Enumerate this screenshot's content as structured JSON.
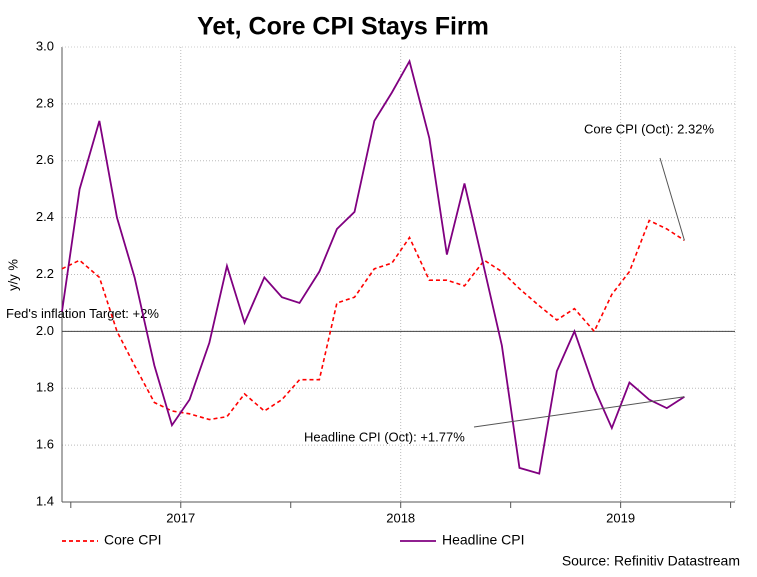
{
  "chart_data": {
    "type": "line",
    "title": "Yet, Core CPI Stays Firm",
    "y_label": "y/y %",
    "source": "Source: Refinitiv Datastream",
    "x": [
      2016.96,
      2017.04,
      2017.13,
      2017.21,
      2017.29,
      2017.38,
      2017.46,
      2017.54,
      2017.63,
      2017.71,
      2017.79,
      2017.88,
      2017.96,
      2018.04,
      2018.13,
      2018.21,
      2018.29,
      2018.38,
      2018.46,
      2018.54,
      2018.63,
      2018.71,
      2018.79,
      2018.88,
      2018.96,
      2019.04,
      2019.13,
      2019.21,
      2019.29,
      2019.38,
      2019.46,
      2019.54,
      2019.63,
      2019.71,
      2019.79
    ],
    "series": [
      {
        "name": "Core CPI",
        "color": "#ff0000",
        "dash": true,
        "values": [
          2.22,
          2.25,
          2.19,
          2.0,
          1.88,
          1.75,
          1.72,
          1.71,
          1.69,
          1.7,
          1.78,
          1.72,
          1.76,
          1.83,
          1.83,
          2.1,
          2.12,
          2.22,
          2.24,
          2.33,
          2.18,
          2.18,
          2.16,
          2.25,
          2.21,
          2.15,
          2.09,
          2.04,
          2.08,
          2.0,
          2.13,
          2.21,
          2.39,
          2.36,
          2.32
        ]
      },
      {
        "name": "Headline CPI",
        "color": "#800080",
        "dash": false,
        "values": [
          2.07,
          2.5,
          2.74,
          2.4,
          2.19,
          1.88,
          1.67,
          1.76,
          1.96,
          2.23,
          2.03,
          2.19,
          2.12,
          2.1,
          2.21,
          2.36,
          2.42,
          2.74,
          2.84,
          2.95,
          2.68,
          2.27,
          2.52,
          2.22,
          1.95,
          1.52,
          1.5,
          1.86,
          2.0,
          1.8,
          1.66,
          1.82,
          1.76,
          1.73,
          1.77
        ]
      }
    ],
    "xlim": [
      2016.96,
      2020.02
    ],
    "xticks": [
      {
        "value": 2017.5,
        "label": "2017"
      },
      {
        "value": 2018.5,
        "label": "2018"
      },
      {
        "value": 2019.5,
        "label": "2019"
      }
    ],
    "xtick_marks": [
      2017,
      2017.5,
      2018,
      2018.5,
      2019,
      2019.5,
      2020
    ],
    "ylim": [
      1.4,
      3.0
    ],
    "yticks": [
      1.4,
      1.6,
      1.8,
      {
        "value": 2.0,
        "label": "2.0"
      },
      2.2,
      2.4,
      2.6,
      2.8,
      {
        "value": 3.0,
        "label": "3.0"
      }
    ],
    "grid": true,
    "reference_line": {
      "value": 2.0,
      "label": "Fed's inflation Target: +2%"
    },
    "annotations": [
      {
        "text": "Core CPI (Oct): 2.32%",
        "series": 0
      },
      {
        "text": "Headline CPI (Oct): +1.77%",
        "series": 1
      }
    ],
    "legend": "bottom"
  }
}
